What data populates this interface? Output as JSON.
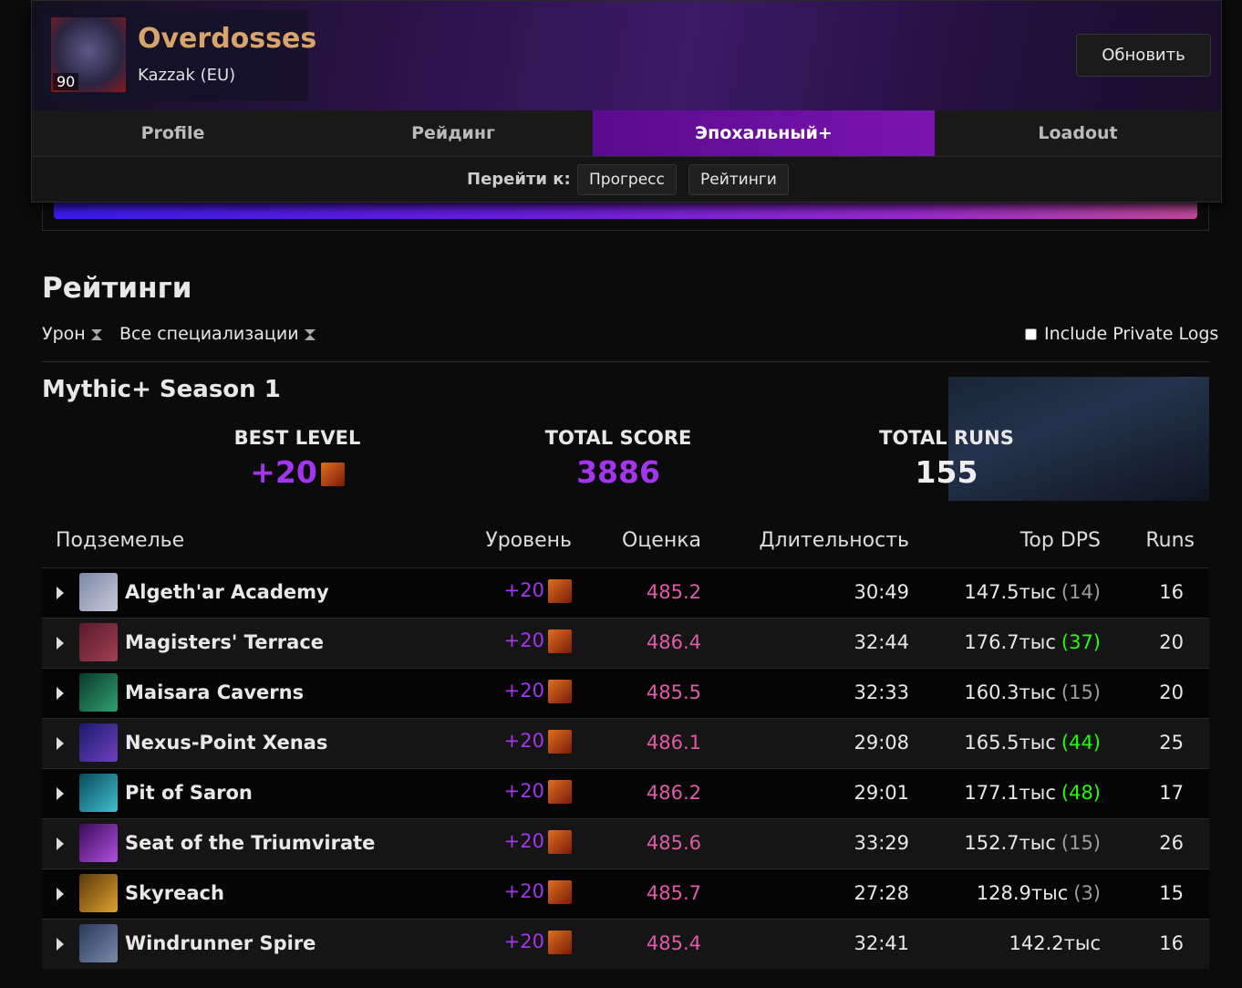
{
  "header": {
    "name": "Overdosses",
    "level": "90",
    "realm": "Kazzak (EU)",
    "refresh_button": "Обновить"
  },
  "tabs": [
    "Profile",
    "Рейдинг",
    "Эпохальный+",
    "Loadout"
  ],
  "jump": {
    "label": "Перейти к:",
    "links": [
      "Прогресс",
      "Рейтинги"
    ]
  },
  "rankings": {
    "title": "Рейтинги",
    "filters": [
      "Урон",
      "Все специализации"
    ],
    "private_logs": "Include Private Logs"
  },
  "season": {
    "title": "Mythic+ Season 1",
    "stats": [
      {
        "label": "BEST LEVEL",
        "value": "+20"
      },
      {
        "label": "TOTAL SCORE",
        "value": "3886"
      },
      {
        "label": "TOTAL RUNS",
        "value": "155"
      }
    ]
  },
  "table": {
    "headers": [
      "Подземелье",
      "Уровень",
      "Оценка",
      "Длительность",
      "Top DPS",
      "Runs"
    ],
    "rows": [
      {
        "name": "Algeth'ar Academy",
        "level": "+20",
        "score": "485.2",
        "duration": "30:49",
        "top_dps": "147.5тыс",
        "rank": "(14)",
        "rank_color": "#9d9d9d",
        "runs": "16"
      },
      {
        "name": "Magisters' Terrace",
        "level": "+20",
        "score": "486.4",
        "duration": "32:44",
        "top_dps": "176.7тыс",
        "rank": "(37)",
        "rank_color": "#1eff00",
        "runs": "20"
      },
      {
        "name": "Maisara Caverns",
        "level": "+20",
        "score": "485.5",
        "duration": "32:33",
        "top_dps": "160.3тыс",
        "rank": "(15)",
        "rank_color": "#9d9d9d",
        "runs": "20"
      },
      {
        "name": "Nexus-Point Xenas",
        "level": "+20",
        "score": "486.1",
        "duration": "29:08",
        "top_dps": "165.5тыс",
        "rank": "(44)",
        "rank_color": "#1eff00",
        "runs": "25"
      },
      {
        "name": "Pit of Saron",
        "level": "+20",
        "score": "486.2",
        "duration": "29:01",
        "top_dps": "177.1тыс",
        "rank": "(48)",
        "rank_color": "#1eff00",
        "runs": "17"
      },
      {
        "name": "Seat of the Triumvirate",
        "level": "+20",
        "score": "485.6",
        "duration": "33:29",
        "top_dps": "152.7тыс",
        "rank": "(15)",
        "rank_color": "#9d9d9d",
        "runs": "26"
      },
      {
        "name": "Skyreach",
        "level": "+20",
        "score": "485.7",
        "duration": "27:28",
        "top_dps": "128.9тыс",
        "rank": "(3)",
        "rank_color": "#9d9d9d",
        "runs": "15"
      },
      {
        "name": "Windrunner Spire",
        "level": "+20",
        "score": "485.4",
        "duration": "32:41",
        "top_dps": "142.2тыс",
        "runs": "16"
      }
    ]
  }
}
